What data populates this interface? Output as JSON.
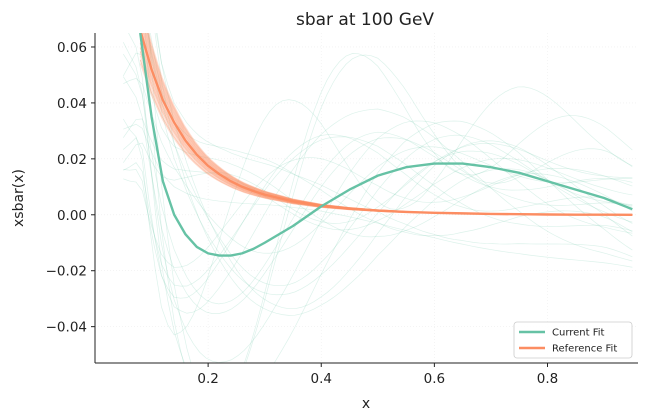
{
  "chart_data": {
    "type": "line",
    "title": "sbar at 100 GeV",
    "xlabel": "x",
    "ylabel": "xsbar(x)",
    "xlim": [
      0.0,
      0.96
    ],
    "ylim": [
      -0.053,
      0.065
    ],
    "xticks": [
      0.2,
      0.4,
      0.6,
      0.8
    ],
    "yticks": [
      -0.04,
      -0.02,
      0.0,
      0.02,
      0.04,
      0.06
    ],
    "xtick_labels": [
      "0.2",
      "0.4",
      "0.6",
      "0.8"
    ],
    "ytick_labels": [
      "−0.04",
      "−0.02",
      "0.00",
      "0.02",
      "0.04",
      "0.06"
    ],
    "grid": true,
    "legend": {
      "placement": "bottom-right",
      "entries": [
        {
          "label": "Current Fit",
          "color": "#66c2a5"
        },
        {
          "label": "Reference Fit",
          "color": "#fc8d62"
        }
      ]
    },
    "series": [
      {
        "name": "Current Fit",
        "color": "#66c2a5",
        "x": [
          0.08,
          0.1,
          0.12,
          0.14,
          0.16,
          0.18,
          0.2,
          0.22,
          0.24,
          0.26,
          0.28,
          0.3,
          0.35,
          0.4,
          0.45,
          0.5,
          0.55,
          0.6,
          0.65,
          0.7,
          0.75,
          0.8,
          0.85,
          0.9,
          0.95
        ],
        "y": [
          0.065,
          0.035,
          0.012,
          0.0,
          -0.007,
          -0.0115,
          -0.0138,
          -0.0146,
          -0.0146,
          -0.0138,
          -0.0122,
          -0.01,
          -0.004,
          0.003,
          0.009,
          0.014,
          0.017,
          0.0183,
          0.0183,
          0.017,
          0.015,
          0.012,
          0.009,
          0.006,
          0.002
        ]
      },
      {
        "name": "Reference Fit",
        "color": "#fc8d62",
        "x": [
          0.08,
          0.1,
          0.12,
          0.14,
          0.16,
          0.18,
          0.2,
          0.22,
          0.24,
          0.26,
          0.28,
          0.3,
          0.35,
          0.4,
          0.45,
          0.5,
          0.55,
          0.6,
          0.65,
          0.7,
          0.75,
          0.8,
          0.85,
          0.9,
          0.95
        ],
        "y": [
          0.066,
          0.052,
          0.041,
          0.033,
          0.0265,
          0.0215,
          0.0175,
          0.0145,
          0.012,
          0.01,
          0.0085,
          0.0072,
          0.0048,
          0.0032,
          0.0022,
          0.0015,
          0.001,
          0.0007,
          0.0005,
          0.0003,
          0.0002,
          0.0001,
          5e-05,
          2e-05,
          0.0
        ]
      }
    ]
  }
}
